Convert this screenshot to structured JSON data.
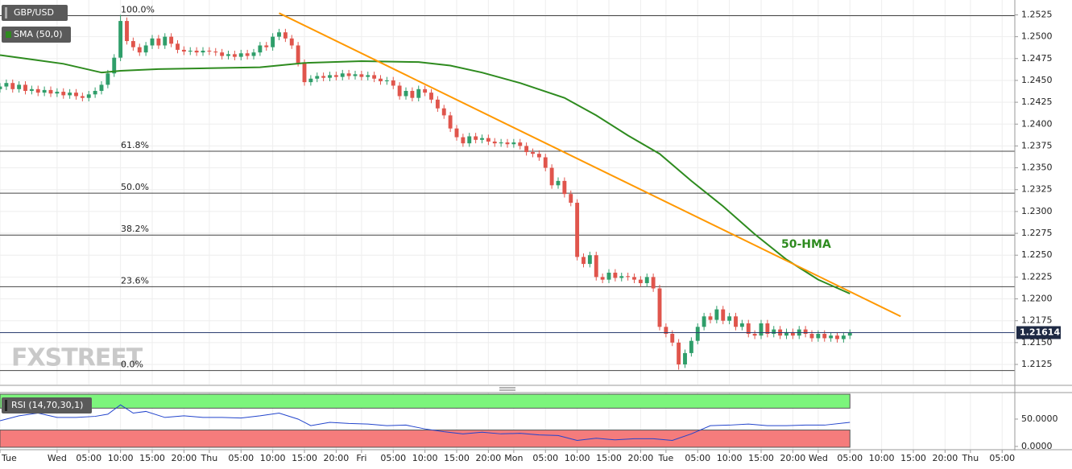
{
  "chart_data": [
    {
      "type": "candlestick",
      "title": "GBP/USD",
      "watermark": "FXSTREET",
      "annotation": "50-HMA",
      "up_color": "#2f9e6a",
      "down_color": "#e0554c",
      "grid": true,
      "xlim": [
        15,
        175
      ],
      "xticks": [
        {
          "value": 15,
          "label": "Tue"
        },
        {
          "value": 24,
          "label": "Wed"
        },
        {
          "value": 29,
          "label": "05:00"
        },
        {
          "value": 34,
          "label": "10:00"
        },
        {
          "value": 39,
          "label": "15:00"
        },
        {
          "value": 44,
          "label": "20:00"
        },
        {
          "value": 48,
          "label": "Thu"
        },
        {
          "value": 53,
          "label": "05:00"
        },
        {
          "value": 58,
          "label": "10:00"
        },
        {
          "value": 63,
          "label": "15:00"
        },
        {
          "value": 68,
          "label": "20:00"
        },
        {
          "value": 72,
          "label": "Fri"
        },
        {
          "value": 77,
          "label": "05:00"
        },
        {
          "value": 82,
          "label": "10:00"
        },
        {
          "value": 87,
          "label": "15:00"
        },
        {
          "value": 92,
          "label": "20:00"
        },
        {
          "value": 96,
          "label": "Mon"
        },
        {
          "value": 101,
          "label": "05:00"
        },
        {
          "value": 106,
          "label": "10:00"
        },
        {
          "value": 111,
          "label": "15:00"
        },
        {
          "value": 116,
          "label": "20:00"
        },
        {
          "value": 120,
          "label": "Tue"
        },
        {
          "value": 125,
          "label": "05:00"
        },
        {
          "value": 130,
          "label": "10:00"
        },
        {
          "value": 135,
          "label": "15:00"
        },
        {
          "value": 140,
          "label": "20:00"
        },
        {
          "value": 144,
          "label": "Wed"
        },
        {
          "value": 149,
          "label": "05:00"
        },
        {
          "value": 154,
          "label": "10:00"
        },
        {
          "value": 159,
          "label": "15:00"
        },
        {
          "value": 164,
          "label": "20:00"
        },
        {
          "value": 168,
          "label": "Thu"
        },
        {
          "value": 173,
          "label": "05:00"
        }
      ],
      "ylim": [
        1.2102,
        1.2542
      ],
      "yticks": [
        1.2125,
        {
          "value": 1.215,
          "label": "1.2150"
        },
        1.2175,
        {
          "value": 1.22,
          "label": "1.2200"
        },
        1.2225,
        {
          "value": 1.225,
          "label": "1.2250"
        },
        1.2275,
        {
          "value": 1.23,
          "label": "1.2300"
        },
        1.2325,
        {
          "value": 1.235,
          "label": "1.2350"
        },
        1.2375,
        {
          "value": 1.24,
          "label": "1.2400"
        },
        1.2425,
        {
          "value": 1.245,
          "label": "1.2450"
        },
        1.2475,
        {
          "value": 1.25,
          "label": "1.2500"
        },
        1.2525
      ],
      "last_price": 1.21614,
      "fib_levels": [
        {
          "label": "100.0%",
          "value": 1.2524
        },
        {
          "label": "61.8%",
          "value": 1.2369
        },
        {
          "label": "50.0%",
          "value": 1.2321
        },
        {
          "label": "38.2%",
          "value": 1.2273
        },
        {
          "label": "23.6%",
          "value": 1.2214
        },
        {
          "label": "0.0%",
          "value": 1.2118
        }
      ],
      "trendline": {
        "color": "#ff9800",
        "x": [
          59,
          157
        ],
        "values": [
          1.2527,
          1.218
        ]
      },
      "series": [
        {
          "name": "SMA (50,0)",
          "color": "#2e8b1f",
          "x": [
            15,
            20,
            25,
            31,
            34,
            40,
            48,
            56,
            63,
            72,
            81,
            86,
            91,
            97,
            104,
            109,
            114,
            119,
            124,
            129,
            134,
            139,
            144,
            149
          ],
          "values": [
            1.2479,
            1.2474,
            1.2469,
            1.2459,
            1.2461,
            1.2463,
            1.2464,
            1.2465,
            1.247,
            1.2472,
            1.2471,
            1.2467,
            1.2459,
            1.2447,
            1.243,
            1.241,
            1.2387,
            1.2366,
            1.2335,
            1.2306,
            1.2274,
            1.2245,
            1.2222,
            1.2206
          ]
        }
      ],
      "x": [
        15,
        16,
        17,
        18,
        19,
        20,
        21,
        22,
        23,
        24,
        25,
        26,
        27,
        28,
        29,
        30,
        31,
        32,
        33,
        34,
        35,
        36,
        37,
        38,
        39,
        40,
        41,
        42,
        43,
        44,
        45,
        46,
        47,
        48,
        49,
        50,
        51,
        52,
        53,
        54,
        55,
        56,
        57,
        58,
        59,
        60,
        61,
        62,
        63,
        64,
        65,
        66,
        67,
        68,
        69,
        70,
        71,
        72,
        73,
        74,
        75,
        76,
        77,
        78,
        79,
        80,
        81,
        82,
        83,
        84,
        85,
        86,
        87,
        88,
        89,
        90,
        91,
        92,
        93,
        94,
        95,
        96,
        97,
        98,
        99,
        100,
        101,
        102,
        103,
        104,
        105,
        106,
        107,
        108,
        109,
        110,
        111,
        112,
        113,
        114,
        115,
        116,
        117,
        118,
        119,
        120,
        121,
        122,
        123,
        124,
        125,
        126,
        127,
        128,
        129,
        130,
        131,
        132,
        133,
        134,
        135,
        136,
        137,
        138,
        139,
        140,
        141,
        142,
        143,
        144,
        145,
        146,
        147,
        148,
        149
      ],
      "open": [
        1.244,
        1.2443,
        1.2447,
        1.244,
        1.2445,
        1.2438,
        1.244,
        1.2436,
        1.2439,
        1.2435,
        1.2437,
        1.2433,
        1.2436,
        1.2432,
        1.243,
        1.2434,
        1.2438,
        1.2445,
        1.2458,
        1.2476,
        1.2518,
        1.2495,
        1.2488,
        1.2482,
        1.249,
        1.2498,
        1.249,
        1.25,
        1.2492,
        1.2485,
        1.2483,
        1.2484,
        1.2482,
        1.2484,
        1.2483,
        1.2482,
        1.2478,
        1.248,
        1.2477,
        1.2481,
        1.2478,
        1.2482,
        1.249,
        1.2488,
        1.25,
        1.2505,
        1.2498,
        1.249,
        1.247,
        1.2448,
        1.2452,
        1.2455,
        1.2453,
        1.2456,
        1.2454,
        1.2458,
        1.2455,
        1.2457,
        1.2454,
        1.2456,
        1.2452,
        1.2449,
        1.245,
        1.2444,
        1.2432,
        1.2438,
        1.243,
        1.244,
        1.2436,
        1.2428,
        1.2418,
        1.241,
        1.2395,
        1.2385,
        1.2378,
        1.2386,
        1.2382,
        1.2384,
        1.238,
        1.2378,
        1.2379,
        1.2377,
        1.2379,
        1.2375,
        1.2368,
        1.2366,
        1.2362,
        1.235,
        1.233,
        1.2335,
        1.232,
        1.231,
        1.2248,
        1.224,
        1.225,
        1.2225,
        1.2222,
        1.223,
        1.2224,
        1.2226,
        1.2225,
        1.2222,
        1.2218,
        1.2225,
        1.2212,
        1.2168,
        1.216,
        1.215,
        1.2125,
        1.2138,
        1.2152,
        1.2168,
        1.218,
        1.2176,
        1.2188,
        1.2175,
        1.218,
        1.2168,
        1.2172,
        1.216,
        1.2158,
        1.2172,
        1.216,
        1.2165,
        1.2158,
        1.2162,
        1.2158,
        1.2165,
        1.216,
        1.2155,
        1.216,
        1.2155,
        1.2158,
        1.2154,
        1.2158
      ],
      "high": [
        1.2447,
        1.2451,
        1.2451,
        1.2449,
        1.2449,
        1.2444,
        1.2444,
        1.2443,
        1.2443,
        1.2441,
        1.2441,
        1.244,
        1.244,
        1.2436,
        1.2438,
        1.2442,
        1.2449,
        1.2462,
        1.248,
        1.2525,
        1.2522,
        1.2499,
        1.2492,
        1.2494,
        1.2502,
        1.2502,
        1.2504,
        1.2504,
        1.2496,
        1.2489,
        1.2488,
        1.2488,
        1.2488,
        1.2488,
        1.2487,
        1.2486,
        1.2484,
        1.2484,
        1.2485,
        1.2485,
        1.2486,
        1.2494,
        1.2494,
        1.2504,
        1.2509,
        1.2509,
        1.2502,
        1.2494,
        1.2474,
        1.2456,
        1.2459,
        1.2459,
        1.246,
        1.246,
        1.2462,
        1.2462,
        1.2461,
        1.2461,
        1.246,
        1.246,
        1.2456,
        1.2454,
        1.2454,
        1.2448,
        1.2442,
        1.2442,
        1.2444,
        1.2444,
        1.244,
        1.2432,
        1.2422,
        1.2414,
        1.2399,
        1.2389,
        1.239,
        1.239,
        1.2388,
        1.2388,
        1.2384,
        1.2383,
        1.2383,
        1.2383,
        1.2383,
        1.2379,
        1.2372,
        1.237,
        1.2366,
        1.2354,
        1.2339,
        1.2339,
        1.2324,
        1.2314,
        1.2252,
        1.2254,
        1.2254,
        1.2229,
        1.2234,
        1.2234,
        1.223,
        1.223,
        1.2229,
        1.2226,
        1.2229,
        1.2229,
        1.2216,
        1.2172,
        1.2164,
        1.2154,
        1.2142,
        1.2156,
        1.2172,
        1.2184,
        1.2184,
        1.2192,
        1.2192,
        1.2184,
        1.2184,
        1.2176,
        1.2176,
        1.2164,
        1.2176,
        1.2176,
        1.2169,
        1.2169,
        1.2166,
        1.2166,
        1.2169,
        1.2169,
        1.2164,
        1.2164,
        1.2164,
        1.2162,
        1.2162,
        1.2162,
        1.2165
      ],
      "low": [
        1.2436,
        1.2439,
        1.2436,
        1.2436,
        1.2434,
        1.2434,
        1.2432,
        1.2432,
        1.2431,
        1.2431,
        1.2429,
        1.2429,
        1.2428,
        1.2426,
        1.2426,
        1.243,
        1.2434,
        1.2441,
        1.2454,
        1.2472,
        1.2491,
        1.2484,
        1.2478,
        1.2478,
        1.2486,
        1.2486,
        1.2486,
        1.2488,
        1.2481,
        1.2479,
        1.2479,
        1.2478,
        1.2478,
        1.2479,
        1.2478,
        1.2474,
        1.2474,
        1.2473,
        1.2473,
        1.2474,
        1.2474,
        1.2478,
        1.2484,
        1.2484,
        1.2496,
        1.2494,
        1.2486,
        1.2466,
        1.2444,
        1.2444,
        1.2448,
        1.2449,
        1.2449,
        1.245,
        1.245,
        1.2451,
        1.2451,
        1.245,
        1.245,
        1.2448,
        1.2445,
        1.2445,
        1.244,
        1.2428,
        1.2428,
        1.2426,
        1.2426,
        1.2432,
        1.2424,
        1.2414,
        1.2406,
        1.2391,
        1.2381,
        1.2374,
        1.2374,
        1.2378,
        1.2378,
        1.2376,
        1.2374,
        1.2374,
        1.2373,
        1.2373,
        1.2371,
        1.2364,
        1.2362,
        1.2358,
        1.2346,
        1.2326,
        1.2326,
        1.2316,
        1.2306,
        1.2244,
        1.2236,
        1.2236,
        1.2221,
        1.2218,
        1.2218,
        1.222,
        1.222,
        1.2221,
        1.2218,
        1.2214,
        1.2214,
        1.2208,
        1.2164,
        1.2156,
        1.2146,
        1.2119,
        1.2121,
        1.2134,
        1.2148,
        1.2164,
        1.2172,
        1.2172,
        1.2171,
        1.2171,
        1.2164,
        1.2164,
        1.2156,
        1.2154,
        1.2154,
        1.2156,
        1.2156,
        1.2154,
        1.2154,
        1.2154,
        1.2154,
        1.2156,
        1.2151,
        1.2151,
        1.2151,
        1.2151,
        1.215,
        1.215,
        1.2154
      ],
      "close": [
        1.2443,
        1.2447,
        1.244,
        1.2445,
        1.2438,
        1.244,
        1.2436,
        1.2439,
        1.2435,
        1.2437,
        1.2433,
        1.2436,
        1.2432,
        1.243,
        1.2434,
        1.2438,
        1.2445,
        1.2458,
        1.2476,
        1.2518,
        1.2495,
        1.2488,
        1.2482,
        1.249,
        1.2498,
        1.249,
        1.25,
        1.2492,
        1.2485,
        1.2483,
        1.2484,
        1.2482,
        1.2484,
        1.2483,
        1.2482,
        1.2478,
        1.248,
        1.2477,
        1.2481,
        1.2478,
        1.2482,
        1.249,
        1.2488,
        1.25,
        1.2505,
        1.2498,
        1.249,
        1.247,
        1.2448,
        1.2452,
        1.2455,
        1.2453,
        1.2456,
        1.2454,
        1.2458,
        1.2455,
        1.2457,
        1.2454,
        1.2456,
        1.2452,
        1.2449,
        1.245,
        1.2444,
        1.2432,
        1.2438,
        1.243,
        1.244,
        1.2436,
        1.2428,
        1.2418,
        1.241,
        1.2395,
        1.2385,
        1.2378,
        1.2386,
        1.2382,
        1.2384,
        1.238,
        1.2378,
        1.2379,
        1.2377,
        1.2379,
        1.2375,
        1.2368,
        1.2366,
        1.2362,
        1.235,
        1.233,
        1.2335,
        1.232,
        1.231,
        1.2248,
        1.224,
        1.225,
        1.2225,
        1.2222,
        1.223,
        1.2224,
        1.2226,
        1.2225,
        1.2222,
        1.2218,
        1.2225,
        1.2212,
        1.2168,
        1.216,
        1.215,
        1.2125,
        1.2138,
        1.2152,
        1.2168,
        1.218,
        1.2176,
        1.2188,
        1.2175,
        1.218,
        1.2168,
        1.2172,
        1.216,
        1.2158,
        1.2172,
        1.216,
        1.2165,
        1.2158,
        1.2162,
        1.2158,
        1.2165,
        1.216,
        1.2155,
        1.216,
        1.2155,
        1.2158,
        1.2154,
        1.2158,
        1.2161
      ]
    },
    {
      "type": "line",
      "title": "RSI (14,70,30,1)",
      "color": "#2244cc",
      "overbought": 70,
      "oversold": 30,
      "overbought_color": "#7cf57c",
      "oversold_color": "#f57c7c",
      "ylim": [
        -4.5,
        98.5
      ],
      "yticks": [
        {
          "value": 50,
          "label": "50.0000"
        },
        {
          "value": 0,
          "label": "0.0000"
        }
      ],
      "x": [
        15,
        18,
        21,
        24,
        27,
        30,
        32,
        34,
        36,
        38,
        41,
        44,
        47,
        50,
        53,
        56,
        59,
        62,
        64,
        67,
        70,
        73,
        76,
        79,
        82,
        85,
        88,
        91,
        94,
        97,
        100,
        103,
        106,
        109,
        112,
        115,
        118,
        121,
        124,
        127,
        130,
        133,
        136,
        139,
        142,
        145,
        149
      ],
      "values": [
        47,
        56,
        61,
        53,
        53,
        55,
        59,
        76,
        61,
        64,
        53,
        56,
        53,
        53,
        52,
        56,
        61,
        50,
        38,
        44,
        42,
        41,
        38,
        39,
        32,
        27,
        23,
        26,
        23,
        24,
        21,
        20,
        11,
        15,
        12,
        14,
        14,
        11,
        23,
        38,
        39,
        41,
        38,
        38,
        39,
        39,
        44
      ]
    }
  ]
}
